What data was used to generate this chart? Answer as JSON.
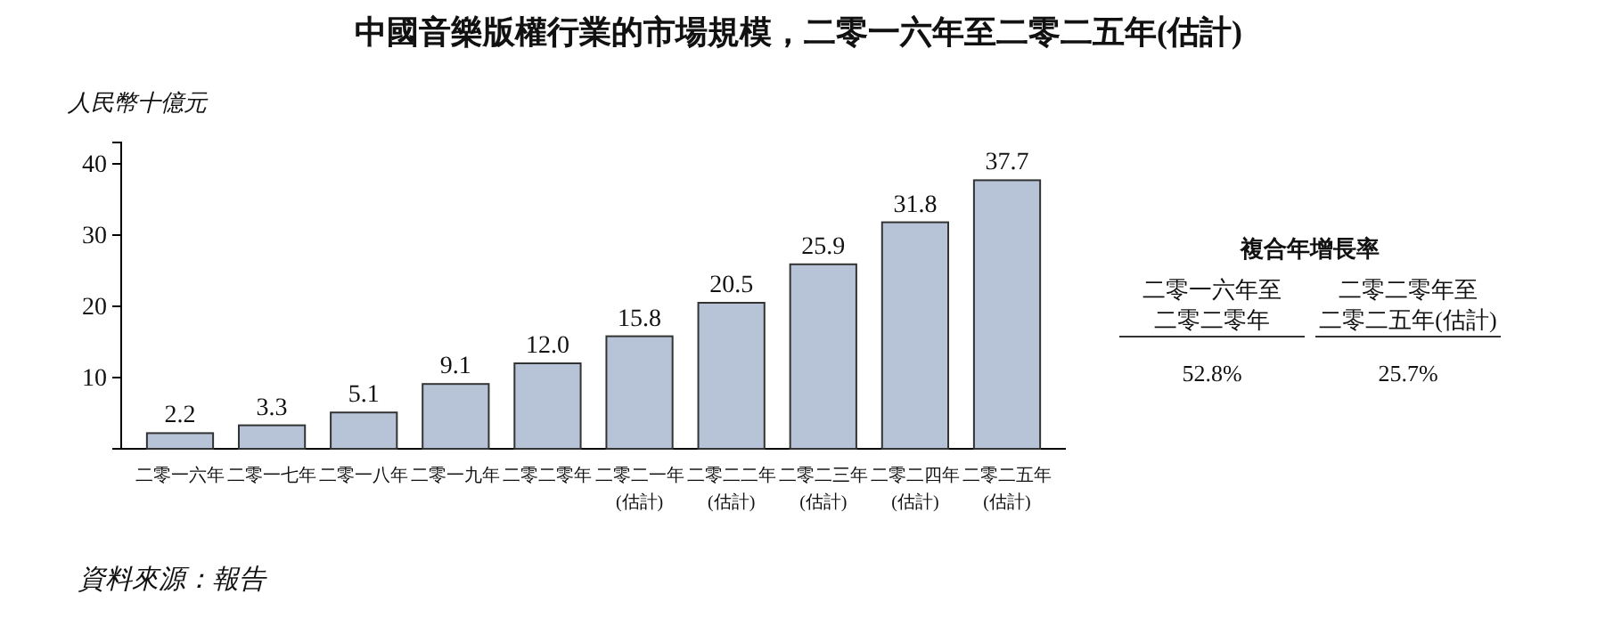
{
  "chart_data": [
    {
      "type": "bar",
      "title": "中國音樂版權行業的市場規模，二零一六年至二零二五年(估計)",
      "ylabel": "人民幣十億元",
      "categories": [
        "二零一六年",
        "二零一七年",
        "二零一八年",
        "二零一九年",
        "二零二零年",
        "二零二一年(估計)",
        "二零二二年(估計)",
        "二零二三年(估計)",
        "二零二四年(估計)",
        "二零二五年(估計)"
      ],
      "values": [
        2.2,
        3.3,
        5.1,
        9.1,
        12.0,
        15.8,
        20.5,
        25.9,
        31.8,
        37.7
      ],
      "color": "#b7c4d7",
      "ylim": [
        0,
        43
      ],
      "yticks": [
        10,
        20,
        30,
        40
      ],
      "value_labels": [
        "2.2",
        "3.3",
        "5.1",
        "9.1",
        "12.0",
        "15.8",
        "20.5",
        "25.9",
        "31.8",
        "37.7"
      ],
      "annotations": [
        "資料來源：報告"
      ]
    },
    {
      "type": "other",
      "title": "複合年增長率",
      "categories": [
        "二零一六年至二零二零年",
        "二零二零年至二零二五年(估計)"
      ],
      "value_labels": [
        "52.8%",
        "25.7%"
      ]
    }
  ]
}
